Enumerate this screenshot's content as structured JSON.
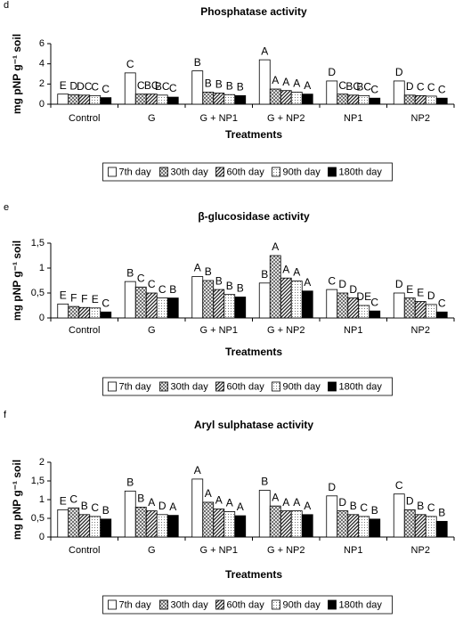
{
  "chart_data": [
    {
      "type": "bar",
      "panel_label": "d",
      "title": "Phosphatase activity",
      "ylabel": "mg pNP g⁻¹ soil",
      "xlabel": "Treatments",
      "categories": [
        "Control",
        "G",
        "G + NP1",
        "G + NP2",
        "NP1",
        "NP2"
      ],
      "ylim": [
        0,
        6
      ],
      "yticks": [
        0,
        2,
        4,
        6
      ],
      "grid": false,
      "legend": "bottom",
      "series": [
        {
          "name": "7th day",
          "color": "#ffffff",
          "pattern": "solid",
          "values": [
            1.0,
            3.1,
            3.3,
            4.4,
            2.3,
            2.3
          ],
          "letters": [
            "E",
            "C",
            "B",
            "A",
            "D",
            "D"
          ]
        },
        {
          "name": "30th day",
          "color": "#ffffff",
          "pattern": "cross",
          "values": [
            0.95,
            1.0,
            1.2,
            1.5,
            1.0,
            0.9
          ],
          "letters": [
            "D",
            "C",
            "B",
            "A",
            "C",
            "D"
          ]
        },
        {
          "name": "60th day",
          "color": "#ffffff",
          "pattern": "diagonal",
          "values": [
            0.9,
            1.0,
            1.1,
            1.35,
            0.9,
            0.85
          ],
          "letters": [
            "DC",
            "BC",
            "B",
            "A",
            "BC",
            "C"
          ]
        },
        {
          "name": "90th day",
          "color": "#ffffff",
          "pattern": "dots",
          "values": [
            0.85,
            0.9,
            0.95,
            1.2,
            0.85,
            0.8
          ],
          "letters": [
            "C",
            "BC",
            "B",
            "A",
            "BC",
            "C"
          ]
        },
        {
          "name": "180th day",
          "color": "#000000",
          "pattern": "solid",
          "values": [
            0.65,
            0.7,
            0.85,
            1.0,
            0.6,
            0.6
          ],
          "letters": [
            "C",
            "C",
            "B",
            "A",
            "C",
            "C"
          ]
        }
      ]
    },
    {
      "type": "bar",
      "panel_label": "e",
      "title": "β-glucosidase activity",
      "ylabel": "mg pNP g⁻¹ soil",
      "xlabel": "Treatments",
      "categories": [
        "Control",
        "G",
        "G + NP1",
        "G + NP2",
        "NP1",
        "NP2"
      ],
      "ylim": [
        0,
        1.5
      ],
      "yticks": [
        0,
        {
          "value": 0.5,
          "label": "0,5"
        },
        1,
        {
          "value": 1.5,
          "label": "1,5"
        }
      ],
      "grid": false,
      "legend": "bottom",
      "series": [
        {
          "name": "7th day",
          "color": "#ffffff",
          "pattern": "solid",
          "values": [
            0.28,
            0.73,
            0.83,
            0.7,
            0.57,
            0.5
          ],
          "letters": [
            "E",
            "B",
            "A",
            "B",
            "C",
            "D"
          ]
        },
        {
          "name": "30th day",
          "color": "#ffffff",
          "pattern": "cross",
          "values": [
            0.23,
            0.62,
            0.75,
            1.25,
            0.5,
            0.4
          ],
          "letters": [
            "F",
            "C",
            "B",
            "A",
            "D",
            "E"
          ]
        },
        {
          "name": "60th day",
          "color": "#ffffff",
          "pattern": "diagonal",
          "values": [
            0.21,
            0.5,
            0.57,
            0.8,
            0.4,
            0.33
          ],
          "letters": [
            "F",
            "C",
            "B",
            "A",
            "D",
            "E"
          ]
        },
        {
          "name": "90th day",
          "color": "#ffffff",
          "pattern": "dots",
          "values": [
            0.2,
            0.4,
            0.47,
            0.74,
            0.25,
            0.27
          ],
          "letters": [
            "E",
            "C",
            "B",
            "A",
            "DE",
            "D"
          ]
        },
        {
          "name": "180th day",
          "color": "#000000",
          "pattern": "solid",
          "values": [
            0.12,
            0.4,
            0.42,
            0.54,
            0.14,
            0.12
          ],
          "letters": [
            "C",
            "B",
            "B",
            "A",
            "C",
            "C"
          ]
        }
      ]
    },
    {
      "type": "bar",
      "panel_label": "f",
      "title": "Aryl sulphatase activity",
      "ylabel": "mg pNP g⁻¹ soil",
      "xlabel": "Treatments",
      "categories": [
        "Control",
        "G",
        "G + NP1",
        "G + NP2",
        "NP1",
        "NP2"
      ],
      "ylim": [
        0,
        2
      ],
      "yticks": [
        0,
        {
          "value": 0.5,
          "label": "0,5"
        },
        1,
        {
          "value": 1.5,
          "label": "1,5"
        },
        2
      ],
      "grid": false,
      "legend": "bottom",
      "series": [
        {
          "name": "7th day",
          "color": "#ffffff",
          "pattern": "solid",
          "values": [
            0.73,
            1.23,
            1.55,
            1.25,
            1.1,
            1.15
          ],
          "letters": [
            "E",
            "B",
            "A",
            "B",
            "D",
            "C"
          ]
        },
        {
          "name": "30th day",
          "color": "#ffffff",
          "pattern": "cross",
          "values": [
            0.78,
            0.8,
            0.93,
            0.83,
            0.7,
            0.73
          ],
          "letters": [
            "C",
            "B",
            "A",
            "A",
            "D",
            "D"
          ]
        },
        {
          "name": "60th day",
          "color": "#ffffff",
          "pattern": "diagonal",
          "values": [
            0.6,
            0.7,
            0.75,
            0.7,
            0.6,
            0.6
          ],
          "letters": [
            "B",
            "A",
            "A",
            "A",
            "B",
            "B"
          ]
        },
        {
          "name": "90th day",
          "color": "#ffffff",
          "pattern": "dots",
          "values": [
            0.55,
            0.6,
            0.68,
            0.7,
            0.55,
            0.55
          ],
          "letters": [
            "C",
            "D",
            "A",
            "A",
            "C",
            "C"
          ]
        },
        {
          "name": "180th day",
          "color": "#000000",
          "pattern": "solid",
          "values": [
            0.48,
            0.58,
            0.57,
            0.6,
            0.48,
            0.42
          ],
          "letters": [
            "B",
            "A",
            "A",
            "A",
            "B",
            "B"
          ]
        }
      ]
    }
  ]
}
